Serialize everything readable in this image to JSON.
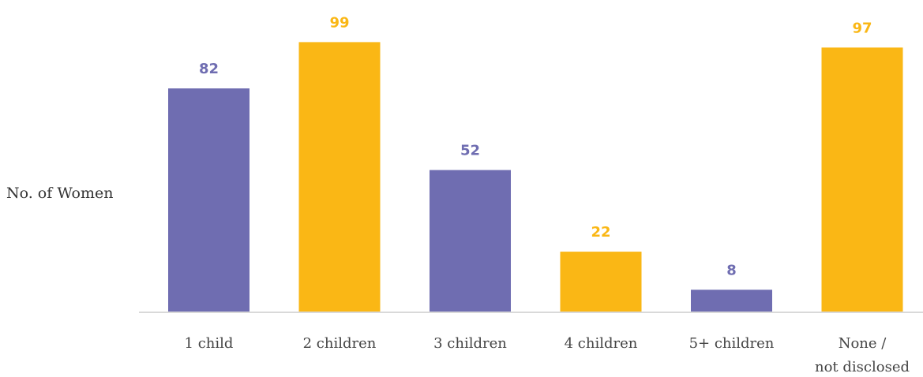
{
  "chart_data": {
    "type": "bar",
    "title": "",
    "xlabel": "",
    "ylabel": "No. of Women",
    "categories": [
      [
        "1 child"
      ],
      [
        "2 children"
      ],
      [
        "3 children"
      ],
      [
        "4 children"
      ],
      [
        "5+ children"
      ],
      [
        "None /",
        "not disclosed"
      ]
    ],
    "values": [
      82,
      99,
      52,
      22,
      8,
      97
    ],
    "ylim": [
      0,
      100
    ],
    "grid": false,
    "colors": {
      "purple": "#6f6db1",
      "gold": "#fab715",
      "axis": "#d9d9d9"
    },
    "bar_colors": [
      "purple",
      "gold",
      "purple",
      "gold",
      "purple",
      "gold"
    ]
  }
}
